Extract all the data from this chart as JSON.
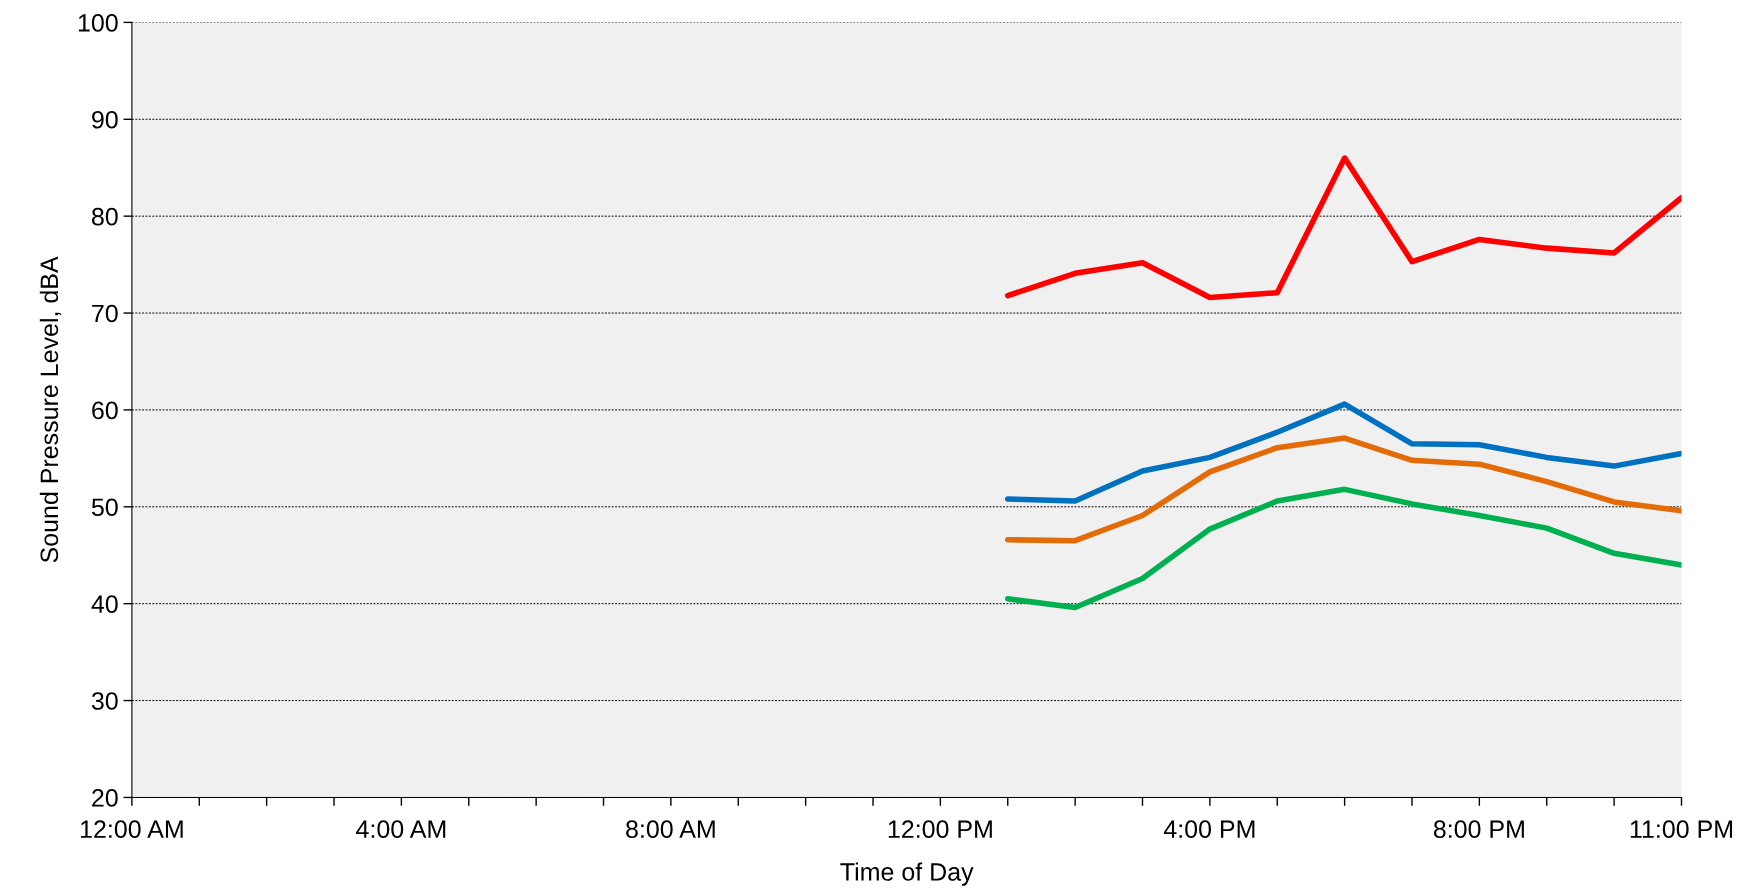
{
  "chart_data": {
    "type": "line",
    "xlabel": "Time of Day",
    "ylabel": "Sound Pressure Level, dBA",
    "x": [
      13,
      14,
      15,
      16,
      17,
      18,
      19,
      20,
      21,
      22,
      23
    ],
    "series": [
      {
        "color": "#ff0000",
        "values": [
          71.8,
          74.1,
          75.2,
          71.6,
          72.1,
          86.0,
          75.3,
          77.6,
          76.7,
          76.2,
          81.9
        ]
      },
      {
        "color": "#0070c0",
        "values": [
          50.8,
          50.6,
          53.7,
          55.1,
          57.7,
          60.6,
          56.5,
          56.4,
          55.1,
          54.2,
          55.5
        ]
      },
      {
        "color": "#e36c09",
        "values": [
          46.6,
          46.5,
          49.1,
          53.6,
          56.1,
          57.1,
          54.8,
          54.4,
          52.6,
          50.5,
          49.6
        ]
      },
      {
        "color": "#00b050",
        "values": [
          40.5,
          39.6,
          42.6,
          47.7,
          50.6,
          51.8,
          50.3,
          49.1,
          47.8,
          45.2,
          44.0
        ]
      }
    ],
    "xlim": [
      0,
      23
    ],
    "xticks": [
      {
        "value": 0,
        "label": "12:00 AM"
      },
      {
        "value": 1,
        "label": null
      },
      {
        "value": 2,
        "label": null
      },
      {
        "value": 3,
        "label": null
      },
      {
        "value": 4,
        "label": "4:00 AM"
      },
      {
        "value": 5,
        "label": null
      },
      {
        "value": 6,
        "label": null
      },
      {
        "value": 7,
        "label": null
      },
      {
        "value": 8,
        "label": "8:00 AM"
      },
      {
        "value": 9,
        "label": null
      },
      {
        "value": 10,
        "label": null
      },
      {
        "value": 11,
        "label": null
      },
      {
        "value": 12,
        "label": "12:00 PM"
      },
      {
        "value": 13,
        "label": null
      },
      {
        "value": 14,
        "label": null
      },
      {
        "value": 15,
        "label": null
      },
      {
        "value": 16,
        "label": "4:00 PM"
      },
      {
        "value": 17,
        "label": null
      },
      {
        "value": 18,
        "label": null
      },
      {
        "value": 19,
        "label": null
      },
      {
        "value": 20,
        "label": "8:00 PM"
      },
      {
        "value": 21,
        "label": null
      },
      {
        "value": 22,
        "label": null
      },
      {
        "value": 23,
        "label": "11:00 PM"
      }
    ],
    "ylim": [
      20,
      100
    ],
    "yticks": [
      20,
      30,
      40,
      50,
      60,
      70,
      80,
      90,
      100
    ],
    "grid": "y",
    "legend": false,
    "marker": "none",
    "line_style": "solid"
  }
}
